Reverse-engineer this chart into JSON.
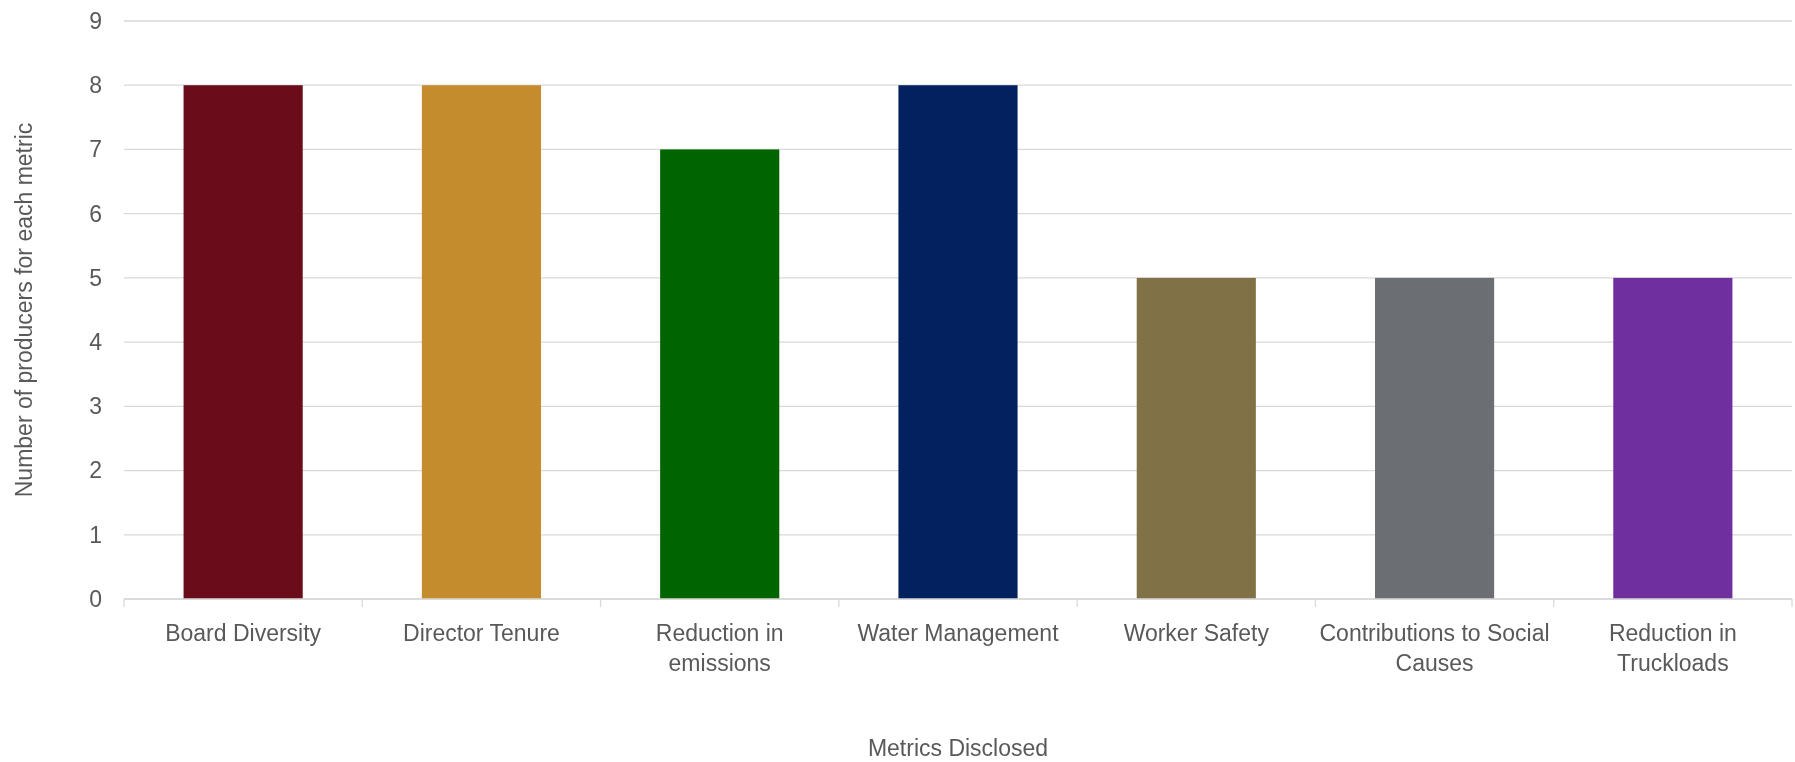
{
  "chart_data": {
    "type": "bar",
    "xlabel": "Metrics Disclosed",
    "ylabel": "Number of producers for each metric",
    "categories": [
      "Board Diversity",
      "Director Tenure",
      "Reduction in emissions",
      "Water Management",
      "Worker Safety",
      "Contributions to Social Causes",
      "Reduction in Truckloads"
    ],
    "values": [
      8,
      8,
      7,
      8,
      5,
      5,
      5
    ],
    "colors": [
      "#6b0c1a",
      "#c58c2e",
      "#006400",
      "#02215e",
      "#807246",
      "#6b6f73",
      "#6f2f9f"
    ],
    "ylim": [
      0,
      9
    ],
    "yticks": [
      0,
      1,
      2,
      3,
      4,
      5,
      6,
      7,
      8,
      9
    ],
    "grid": "y"
  }
}
